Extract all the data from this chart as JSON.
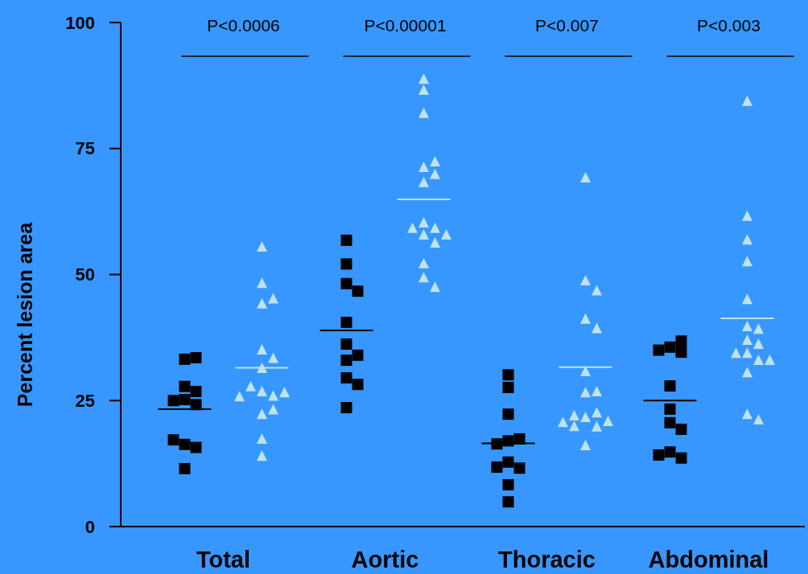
{
  "chart_data": {
    "type": "scatter",
    "ylabel": "Percent lesion area",
    "categories": [
      "Total",
      "Aortic",
      "Thoracic",
      "Abdominal"
    ],
    "ylim": [
      0,
      100
    ],
    "yticks": [
      0,
      25,
      50,
      75,
      100
    ],
    "series": [
      {
        "marker": "square",
        "color": "#000000",
        "x": [
          "Total",
          "Total",
          "Total",
          "Total",
          "Total",
          "Total",
          "Total",
          "Total",
          "Total",
          "Total",
          "Total",
          "Aortic",
          "Aortic",
          "Aortic",
          "Aortic",
          "Aortic",
          "Aortic",
          "Aortic",
          "Aortic",
          "Aortic",
          "Aortic",
          "Aortic",
          "Thoracic",
          "Thoracic",
          "Thoracic",
          "Thoracic",
          "Thoracic",
          "Thoracic",
          "Thoracic",
          "Thoracic",
          "Thoracic",
          "Thoracic",
          "Thoracic",
          "Abdominal",
          "Abdominal",
          "Abdominal",
          "Abdominal",
          "Abdominal",
          "Abdominal",
          "Abdominal",
          "Abdominal",
          "Abdominal",
          "Abdominal",
          "Abdominal"
        ],
        "values": [
          33.2,
          33.5,
          27.8,
          26.8,
          25.2,
          25.0,
          24.2,
          16.3,
          15.7,
          17.2,
          11.5,
          56.8,
          52.1,
          48.2,
          46.7,
          40.5,
          36.2,
          33.0,
          34.0,
          29.5,
          28.2,
          23.6,
          30.1,
          27.6,
          22.3,
          17.0,
          17.4,
          16.4,
          12.8,
          11.6,
          11.8,
          8.3,
          4.9,
          35.6,
          36.8,
          34.6,
          35.0,
          27.9,
          23.3,
          20.6,
          19.3,
          14.8,
          13.6,
          14.2
        ]
      },
      {
        "marker": "triangle",
        "color": "#bde3e6",
        "x": [
          "Total",
          "Total",
          "Total",
          "Total",
          "Total",
          "Total",
          "Total",
          "Total",
          "Total",
          "Total",
          "Total",
          "Total",
          "Total",
          "Total",
          "Total",
          "Total",
          "Aortic",
          "Aortic",
          "Aortic",
          "Aortic",
          "Aortic",
          "Aortic",
          "Aortic",
          "Aortic",
          "Aortic",
          "Aortic",
          "Aortic",
          "Aortic",
          "Aortic",
          "Aortic",
          "Aortic",
          "Aortic",
          "Thoracic",
          "Thoracic",
          "Thoracic",
          "Thoracic",
          "Thoracic",
          "Thoracic",
          "Thoracic",
          "Thoracic",
          "Thoracic",
          "Thoracic",
          "Thoracic",
          "Thoracic",
          "Thoracic",
          "Thoracic",
          "Thoracic",
          "Thoracic",
          "Abdominal",
          "Abdominal",
          "Abdominal",
          "Abdominal",
          "Abdominal",
          "Abdominal",
          "Abdominal",
          "Abdominal",
          "Abdominal",
          "Abdominal",
          "Abdominal",
          "Abdominal",
          "Abdominal",
          "Abdominal",
          "Abdominal",
          "Abdominal"
        ],
        "values": [
          55.5,
          48.3,
          44.2,
          45.2,
          35.1,
          33.4,
          31.4,
          26.8,
          25.9,
          27.8,
          26.6,
          25.8,
          22.3,
          23.2,
          17.4,
          14.0,
          88.8,
          86.6,
          82.0,
          71.3,
          72.4,
          69.9,
          68.3,
          60.3,
          59.2,
          59.2,
          57.9,
          57.9,
          56.3,
          52.2,
          49.4,
          47.5,
          69.2,
          48.8,
          46.8,
          41.2,
          39.3,
          30.8,
          26.6,
          26.8,
          21.7,
          22.6,
          22.0,
          20.9,
          19.8,
          19.9,
          20.7,
          16.1,
          84.4,
          61.6,
          56.9,
          52.6,
          45.1,
          39.7,
          39.2,
          37.0,
          36.2,
          34.4,
          34.4,
          33.0,
          33.0,
          30.6,
          22.3,
          21.2
        ]
      },
      {
        "type": "box",
        "color": "#000000",
        "boxes": [
          {
            "low": 23.3,
            "q1": 23.3,
            "median": 23.3,
            "q3": 23.3,
            "high": 23.3
          },
          {
            "low": 38.9,
            "q1": 38.9,
            "median": 38.9,
            "q3": 38.9,
            "high": 38.9
          },
          {
            "low": 16.5,
            "q1": 16.5,
            "median": 16.5,
            "q3": 16.5,
            "high": 16.5
          },
          {
            "low": 25.0,
            "q1": 25.0,
            "median": 25.0,
            "q3": 25.0,
            "high": 25.0
          }
        ]
      },
      {
        "type": "box",
        "color": "#bde3e6",
        "boxes": [
          {
            "low": 31.5,
            "q1": 31.5,
            "median": 31.5,
            "q3": 31.5,
            "high": 31.5
          },
          {
            "low": 64.9,
            "q1": 64.9,
            "median": 64.9,
            "q3": 64.9,
            "high": 64.9
          },
          {
            "low": 31.6,
            "q1": 31.6,
            "median": 31.6,
            "q3": 31.6,
            "high": 31.6
          },
          {
            "low": 41.3,
            "q1": 41.3,
            "median": 41.3,
            "q3": 41.3,
            "high": 41.3
          }
        ]
      }
    ],
    "annotations": [
      "P<0.0006",
      "P<0.00001",
      "P<0.007",
      "P<0.003"
    ]
  }
}
